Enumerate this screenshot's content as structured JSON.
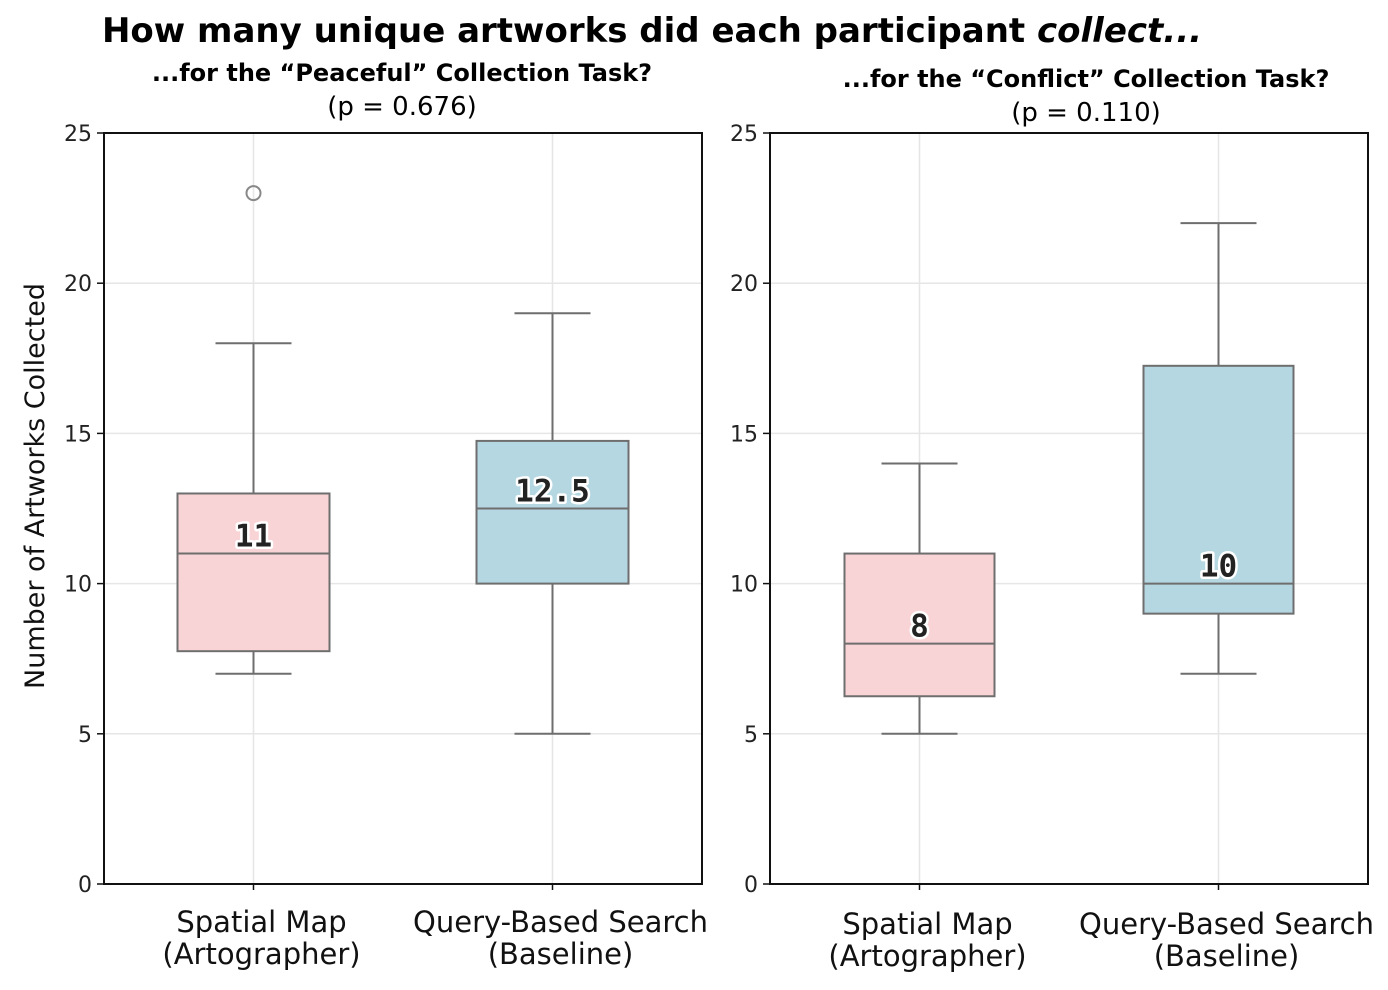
{
  "figure": {
    "title_prefix": "How many unique artworks did each participant ",
    "title_emphasis": "collect",
    "title_suffix": "..."
  },
  "colors": {
    "artographer": "#f9d4d6",
    "baseline": "#b5d7e2",
    "line": "#6e6e6e",
    "grid": "#e6e6e6"
  },
  "chart_data": [
    {
      "type": "box",
      "title": "...for the “Peaceful” Collection Task?",
      "subtitle": "(p = 0.676)",
      "ylabel": "Number of Artworks Collected",
      "ylim": [
        0,
        25
      ],
      "yticks": [
        0,
        5,
        10,
        15,
        20,
        25
      ],
      "categories": [
        {
          "line1": "Spatial Map",
          "line2": "(Artographer)",
          "group": "artographer"
        },
        {
          "line1": "Query-Based Search",
          "line2": "(Baseline)",
          "group": "baseline"
        }
      ],
      "boxes": [
        {
          "whisker_low": 7,
          "q1": 7.75,
          "median": 11,
          "q3": 13,
          "whisker_high": 18,
          "outliers": [
            23
          ],
          "median_label": "11"
        },
        {
          "whisker_low": 5,
          "q1": 10,
          "median": 12.5,
          "q3": 14.75,
          "whisker_high": 19,
          "outliers": [],
          "median_label": "12.5"
        }
      ]
    },
    {
      "type": "box",
      "title": "...for the “Conflict” Collection Task?",
      "subtitle": "(p = 0.110)",
      "ylabel": "",
      "ylim": [
        0,
        25
      ],
      "yticks": [
        0,
        5,
        10,
        15,
        20,
        25
      ],
      "categories": [
        {
          "line1": "Spatial Map",
          "line2": "(Artographer)",
          "group": "artographer"
        },
        {
          "line1": "Query-Based Search",
          "line2": "(Baseline)",
          "group": "baseline"
        }
      ],
      "boxes": [
        {
          "whisker_low": 5,
          "q1": 6.25,
          "median": 8,
          "q3": 11,
          "whisker_high": 14,
          "outliers": [],
          "median_label": "8"
        },
        {
          "whisker_low": 7,
          "q1": 9,
          "median": 10,
          "q3": 17.25,
          "whisker_high": 22,
          "outliers": [],
          "median_label": "10"
        }
      ]
    }
  ]
}
